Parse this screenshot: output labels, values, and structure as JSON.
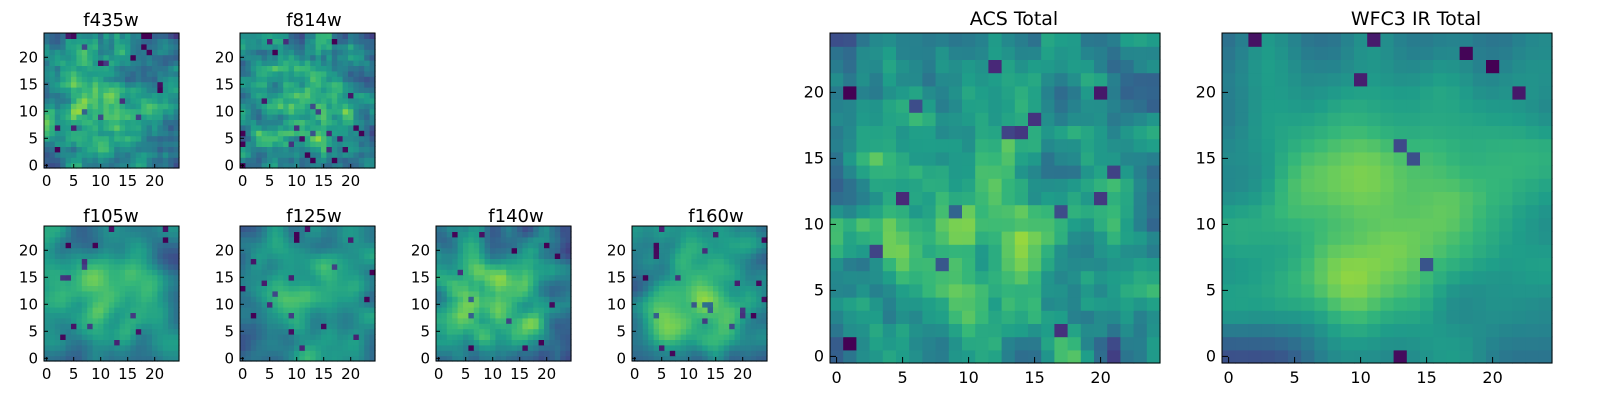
{
  "chart_data": [
    {
      "type": "heatmap",
      "title": "f435w",
      "x_ticks": [
        "0",
        "5",
        "10",
        "15",
        "20"
      ],
      "y_ticks": [
        "0",
        "5",
        "10",
        "15",
        "20"
      ],
      "xlim": [
        0,
        24
      ],
      "ylim": [
        0,
        24
      ],
      "colormap": "viridis"
    },
    {
      "type": "heatmap",
      "title": "f814w",
      "x_ticks": [
        "0",
        "5",
        "10",
        "15",
        "20"
      ],
      "y_ticks": [
        "0",
        "5",
        "10",
        "15",
        "20"
      ],
      "xlim": [
        0,
        24
      ],
      "ylim": [
        0,
        24
      ],
      "colormap": "viridis"
    },
    {
      "type": "heatmap",
      "title": "f105w",
      "x_ticks": [
        "0",
        "5",
        "10",
        "15",
        "20"
      ],
      "y_ticks": [
        "0",
        "5",
        "10",
        "15",
        "20"
      ],
      "xlim": [
        0,
        24
      ],
      "ylim": [
        0,
        24
      ],
      "colormap": "viridis"
    },
    {
      "type": "heatmap",
      "title": "f125w",
      "x_ticks": [
        "0",
        "5",
        "10",
        "15",
        "20"
      ],
      "y_ticks": [
        "0",
        "5",
        "10",
        "15",
        "20"
      ],
      "xlim": [
        0,
        24
      ],
      "ylim": [
        0,
        24
      ],
      "colormap": "viridis"
    },
    {
      "type": "heatmap",
      "title": "f140w",
      "x_ticks": [
        "0",
        "5",
        "10",
        "15",
        "20"
      ],
      "y_ticks": [
        "0",
        "5",
        "10",
        "15",
        "20"
      ],
      "xlim": [
        0,
        24
      ],
      "ylim": [
        0,
        24
      ],
      "colormap": "viridis"
    },
    {
      "type": "heatmap",
      "title": "f160w",
      "x_ticks": [
        "0",
        "5",
        "10",
        "15",
        "20"
      ],
      "y_ticks": [
        "0",
        "5",
        "10",
        "15",
        "20"
      ],
      "xlim": [
        0,
        24
      ],
      "ylim": [
        0,
        24
      ],
      "colormap": "viridis"
    },
    {
      "type": "heatmap",
      "title": "ACS Total",
      "x_ticks": [
        "0",
        "5",
        "10",
        "15",
        "20"
      ],
      "y_ticks": [
        "0",
        "5",
        "10",
        "15",
        "20"
      ],
      "xlim": [
        0,
        24
      ],
      "ylim": [
        0,
        24
      ],
      "colormap": "viridis"
    },
    {
      "type": "heatmap",
      "title": "WFC3 IR Total",
      "x_ticks": [
        "0",
        "5",
        "10",
        "15",
        "20"
      ],
      "y_ticks": [
        "0",
        "5",
        "10",
        "15",
        "20"
      ],
      "xlim": [
        0,
        24
      ],
      "ylim": [
        0,
        24
      ],
      "colormap": "viridis"
    }
  ]
}
